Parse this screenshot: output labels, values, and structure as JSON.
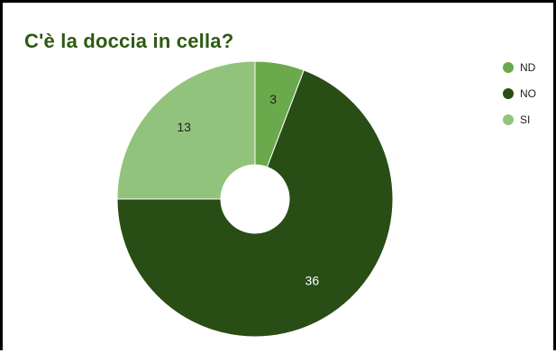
{
  "chart_data": {
    "type": "pie",
    "donut": true,
    "title": "C'è la doccia in cella?",
    "categories": [
      "ND",
      "NO",
      "SI"
    ],
    "values": [
      3,
      36,
      13
    ],
    "colors": [
      "#6aaa4c",
      "#284d15",
      "#92c37c"
    ],
    "data_labels": [
      "3",
      "36",
      "13"
    ],
    "label_colors": [
      "#222222",
      "#ffffff",
      "#222222"
    ],
    "legend_position": "top-right",
    "start_angle": "top, clockwise"
  }
}
